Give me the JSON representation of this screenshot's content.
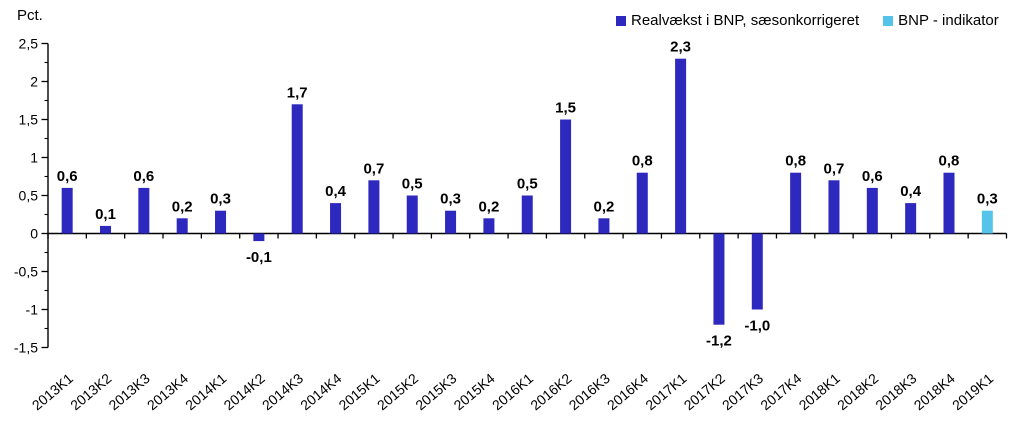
{
  "chart_data": {
    "type": "bar",
    "unit_label": "Pct.",
    "ylim": [
      -1.5,
      2.5
    ],
    "y_major_tick_step": 0.5,
    "y_minor_tick_step": 0.25,
    "grid": false,
    "legend_position": "top-right",
    "y_ticks": [
      {
        "value": 2.5,
        "label": "2,5"
      },
      {
        "value": 2.0,
        "label": "2"
      },
      {
        "value": 1.5,
        "label": "1,5"
      },
      {
        "value": 1.0,
        "label": "1"
      },
      {
        "value": 0.5,
        "label": "0,5"
      },
      {
        "value": 0.0,
        "label": "0"
      },
      {
        "value": -0.5,
        "label": "-0,5"
      },
      {
        "value": -1.0,
        "label": "-1"
      },
      {
        "value": -1.5,
        "label": "-1,5"
      }
    ],
    "categories": [
      "2013K1",
      "2013K2",
      "2013K3",
      "2013K4",
      "2014K1",
      "2014K2",
      "2014K3",
      "2014K4",
      "2015K1",
      "2015K2",
      "2015K3",
      "2015K4",
      "2016K1",
      "2016K2",
      "2016K3",
      "2016K4",
      "2017K1",
      "2017K2",
      "2017K3",
      "2017K4",
      "2018K1",
      "2018K2",
      "2018K3",
      "2018K4",
      "2019K1"
    ],
    "series": [
      {
        "name": "Realvækst i BNP, sæsonkorrigeret",
        "color": "#2D28BE",
        "values": [
          0.6,
          0.1,
          0.6,
          0.2,
          0.3,
          -0.1,
          1.7,
          0.4,
          0.7,
          0.5,
          0.3,
          0.2,
          0.5,
          1.5,
          0.2,
          0.8,
          2.3,
          -1.2,
          -1.0,
          0.8,
          0.7,
          0.6,
          0.4,
          0.8,
          null
        ],
        "labels": [
          "0,6",
          "0,1",
          "0,6",
          "0,2",
          "0,3",
          "-0,1",
          "1,7",
          "0,4",
          "0,7",
          "0,5",
          "0,3",
          "0,2",
          "0,5",
          "1,5",
          "0,2",
          "0,8",
          "2,3",
          "-1,2",
          "-1,0",
          "0,8",
          "0,7",
          "0,6",
          "0,4",
          "0,8",
          null
        ]
      },
      {
        "name": "BNP - indikator",
        "color": "#56C3EA",
        "values": [
          null,
          null,
          null,
          null,
          null,
          null,
          null,
          null,
          null,
          null,
          null,
          null,
          null,
          null,
          null,
          null,
          null,
          null,
          null,
          null,
          null,
          null,
          null,
          null,
          0.3
        ],
        "labels": [
          null,
          null,
          null,
          null,
          null,
          null,
          null,
          null,
          null,
          null,
          null,
          null,
          null,
          null,
          null,
          null,
          null,
          null,
          null,
          null,
          null,
          null,
          null,
          null,
          "0,3"
        ]
      }
    ]
  }
}
